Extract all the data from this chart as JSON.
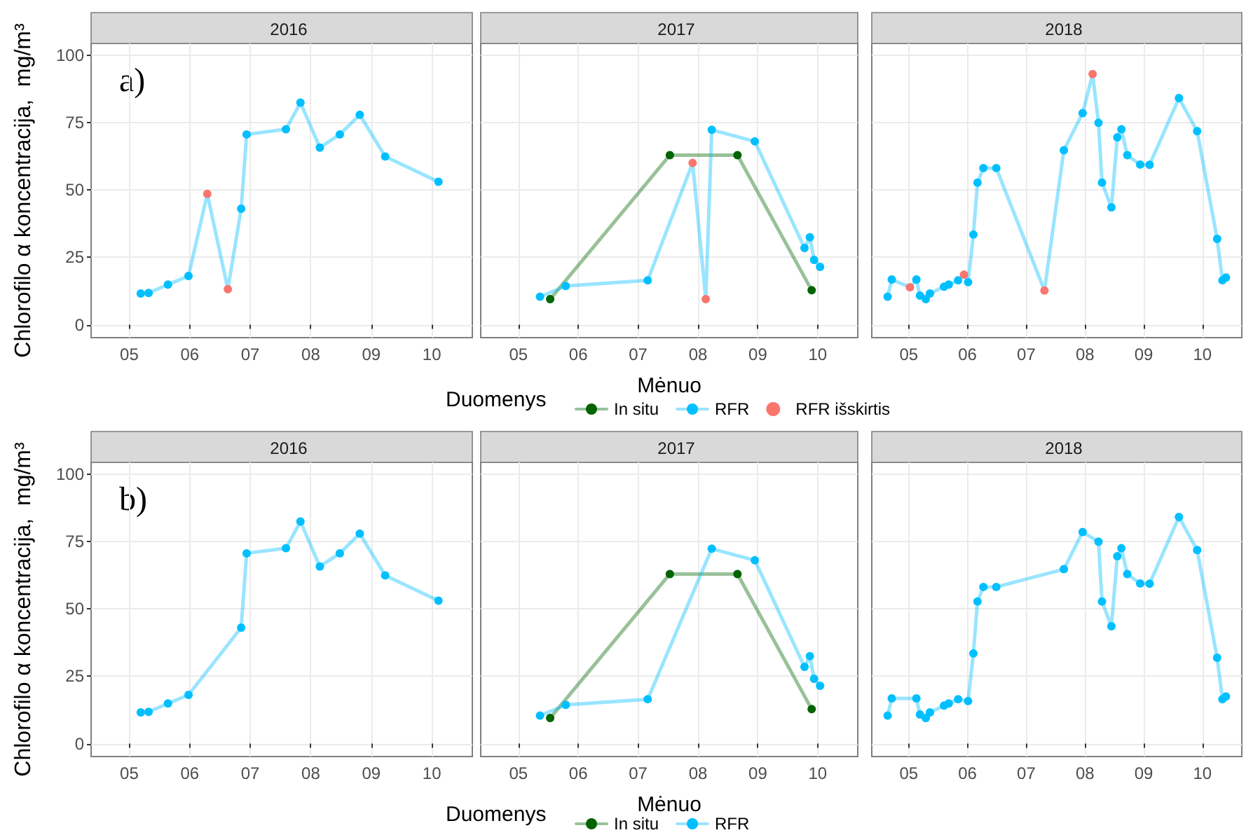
{
  "chart_data": [
    {
      "type": "line",
      "title": "2016",
      "ylabel": "Chlorofilo α koncentracija,  mg/m³",
      "annotations": [
        "a)"
      ],
      "xlim": [
        4.37,
        10.67
      ],
      "xticks": [
        {
          "value": 5,
          "label": "05"
        },
        {
          "value": 6,
          "label": "06"
        },
        {
          "value": 7,
          "label": "07"
        },
        {
          "value": 8,
          "label": "08"
        },
        {
          "value": 9,
          "label": "09"
        },
        {
          "value": 10,
          "label": "10"
        }
      ],
      "ylim": [
        -4.8,
        104.5
      ],
      "yticks": [
        0,
        25,
        50,
        75,
        100
      ],
      "grid": true,
      "marker": "circle",
      "series": [
        {
          "color": "#00bfff",
          "x": [
            5.19,
            5.32,
            5.64,
            5.98,
            6.29,
            6.63,
            6.85,
            6.94,
            7.59,
            7.83,
            8.15,
            8.48,
            8.81,
            9.23,
            10.11
          ],
          "values": [
            11.6,
            11.8,
            14.9,
            18.1,
            48.6,
            13.2,
            43.1,
            70.7,
            72.6,
            82.5,
            65.8,
            70.7,
            78.0,
            62.5,
            53.1
          ]
        },
        {
          "type": "scatter",
          "color": "#f8766d",
          "x": [
            6.29,
            6.63
          ],
          "values": [
            48.6,
            13.2
          ]
        }
      ]
    },
    {
      "type": "line",
      "title": "2017",
      "xlabel": "Mėnuo",
      "legend_title": "Duomenys",
      "legend": "bottom",
      "tick_labels": "x",
      "xlim": [
        4.37,
        10.67
      ],
      "xticks": [
        {
          "value": 5,
          "label": "05"
        },
        {
          "value": 6,
          "label": "06"
        },
        {
          "value": 7,
          "label": "07"
        },
        {
          "value": 8,
          "label": "08"
        },
        {
          "value": 9,
          "label": "09"
        },
        {
          "value": 10,
          "label": "10"
        }
      ],
      "ylim": [
        -4.8,
        104.5
      ],
      "yticks": [
        0,
        25,
        50,
        75,
        100
      ],
      "grid": true,
      "marker": "circle",
      "series": [
        {
          "name": "In situ",
          "color": "#006400",
          "x": [
            5.53,
            7.53,
            8.66,
            9.9
          ],
          "values": [
            9.5,
            63.0,
            63.0,
            12.8
          ]
        },
        {
          "name": "RFR",
          "color": "#00bfff",
          "x": [
            5.36,
            5.79,
            7.16,
            7.91,
            8.13,
            8.23,
            8.95,
            9.78,
            9.87,
            9.94,
            10.04
          ],
          "values": [
            10.4,
            14.4,
            16.5,
            60.1,
            9.5,
            72.4,
            68.1,
            28.5,
            32.5,
            24.1,
            21.5
          ]
        },
        {
          "name": "RFR išskirtis",
          "type": "scatter",
          "color": "#f8766d",
          "x": [
            7.91,
            8.13
          ],
          "values": [
            60.1,
            9.5
          ]
        }
      ]
    },
    {
      "type": "line",
      "title": "2018",
      "tick_labels": "x",
      "xlim": [
        4.37,
        10.67
      ],
      "xticks": [
        {
          "value": 5,
          "label": "05"
        },
        {
          "value": 6,
          "label": "06"
        },
        {
          "value": 7,
          "label": "07"
        },
        {
          "value": 8,
          "label": "08"
        },
        {
          "value": 9,
          "label": "09"
        },
        {
          "value": 10,
          "label": "10"
        }
      ],
      "ylim": [
        -4.8,
        104.5
      ],
      "yticks": [
        0,
        25,
        50,
        75,
        100
      ],
      "grid": true,
      "marker": "circle",
      "series": [
        {
          "color": "#00bfff",
          "x": [
            4.64,
            4.71,
            5.02,
            5.13,
            5.19,
            5.29,
            5.36,
            5.6,
            5.68,
            5.84,
            5.94,
            6.01,
            6.1,
            6.17,
            6.27,
            6.49,
            7.31,
            7.64,
            7.96,
            8.13,
            8.23,
            8.29,
            8.45,
            8.55,
            8.62,
            8.72,
            8.94,
            9.1,
            9.6,
            9.91,
            10.25,
            10.34,
            10.4
          ],
          "values": [
            10.4,
            16.8,
            13.9,
            16.8,
            10.8,
            9.5,
            11.6,
            14.1,
            14.9,
            16.5,
            18.6,
            15.8,
            33.5,
            52.8,
            58.2,
            58.2,
            12.7,
            64.8,
            78.6,
            93.1,
            75.0,
            52.8,
            43.6,
            69.6,
            72.6,
            63.0,
            59.5,
            59.4,
            84.2,
            71.9,
            31.9,
            16.5,
            17.5
          ]
        },
        {
          "type": "scatter",
          "color": "#f8766d",
          "x": [
            5.02,
            5.94,
            7.31,
            8.13
          ],
          "values": [
            13.9,
            18.6,
            12.7,
            93.1
          ]
        }
      ]
    },
    {
      "type": "line",
      "title": "2016",
      "ylabel": "Chlorofilo α koncentracija,  mg/m³",
      "annotations": [
        "b)"
      ],
      "xlim": [
        4.37,
        10.67
      ],
      "xticks": [
        {
          "value": 5,
          "label": "05"
        },
        {
          "value": 6,
          "label": "06"
        },
        {
          "value": 7,
          "label": "07"
        },
        {
          "value": 8,
          "label": "08"
        },
        {
          "value": 9,
          "label": "09"
        },
        {
          "value": 10,
          "label": "10"
        }
      ],
      "ylim": [
        -4.8,
        104.5
      ],
      "yticks": [
        0,
        25,
        50,
        75,
        100
      ],
      "grid": true,
      "marker": "circle",
      "series": [
        {
          "color": "#00bfff",
          "x": [
            5.19,
            5.32,
            5.64,
            5.98,
            6.85,
            6.94,
            7.59,
            7.83,
            8.15,
            8.48,
            8.81,
            9.23,
            10.11
          ],
          "values": [
            11.6,
            11.8,
            14.9,
            18.1,
            43.1,
            70.7,
            72.6,
            82.5,
            65.8,
            70.7,
            78.0,
            62.5,
            53.1
          ]
        }
      ]
    },
    {
      "type": "line",
      "title": "2017",
      "xlabel": "Mėnuo",
      "legend_title": "Duomenys",
      "legend": "bottom",
      "tick_labels": "x",
      "xlim": [
        4.37,
        10.67
      ],
      "xticks": [
        {
          "value": 5,
          "label": "05"
        },
        {
          "value": 6,
          "label": "06"
        },
        {
          "value": 7,
          "label": "07"
        },
        {
          "value": 8,
          "label": "08"
        },
        {
          "value": 9,
          "label": "09"
        },
        {
          "value": 10,
          "label": "10"
        }
      ],
      "ylim": [
        -4.8,
        104.5
      ],
      "yticks": [
        0,
        25,
        50,
        75,
        100
      ],
      "grid": true,
      "marker": "circle",
      "series": [
        {
          "name": "In situ",
          "color": "#006400",
          "x": [
            5.53,
            7.53,
            8.66,
            9.9
          ],
          "values": [
            9.5,
            63.0,
            63.0,
            12.8
          ]
        },
        {
          "name": "RFR",
          "color": "#00bfff",
          "x": [
            5.36,
            5.79,
            7.16,
            8.23,
            8.95,
            9.78,
            9.87,
            9.94,
            10.04
          ],
          "values": [
            10.4,
            14.4,
            16.5,
            72.4,
            68.1,
            28.5,
            32.5,
            24.1,
            21.5
          ]
        }
      ]
    },
    {
      "type": "line",
      "title": "2018",
      "tick_labels": "x",
      "xlim": [
        4.37,
        10.67
      ],
      "xticks": [
        {
          "value": 5,
          "label": "05"
        },
        {
          "value": 6,
          "label": "06"
        },
        {
          "value": 7,
          "label": "07"
        },
        {
          "value": 8,
          "label": "08"
        },
        {
          "value": 9,
          "label": "09"
        },
        {
          "value": 10,
          "label": "10"
        }
      ],
      "ylim": [
        -4.8,
        104.5
      ],
      "yticks": [
        0,
        25,
        50,
        75,
        100
      ],
      "grid": true,
      "marker": "circle",
      "series": [
        {
          "color": "#00bfff",
          "x": [
            4.64,
            4.71,
            5.13,
            5.19,
            5.29,
            5.36,
            5.6,
            5.68,
            5.84,
            6.01,
            6.1,
            6.17,
            6.27,
            6.49,
            7.64,
            7.96,
            8.23,
            8.29,
            8.45,
            8.55,
            8.62,
            8.72,
            8.94,
            9.1,
            9.6,
            9.91,
            10.25,
            10.34,
            10.4
          ],
          "values": [
            10.4,
            16.8,
            16.8,
            10.8,
            9.5,
            11.6,
            14.1,
            14.9,
            16.5,
            15.8,
            33.5,
            52.8,
            58.2,
            58.2,
            64.8,
            78.6,
            75.0,
            52.8,
            43.6,
            69.6,
            72.6,
            63.0,
            59.5,
            59.4,
            84.2,
            71.9,
            31.9,
            16.5,
            17.5
          ]
        }
      ]
    }
  ]
}
